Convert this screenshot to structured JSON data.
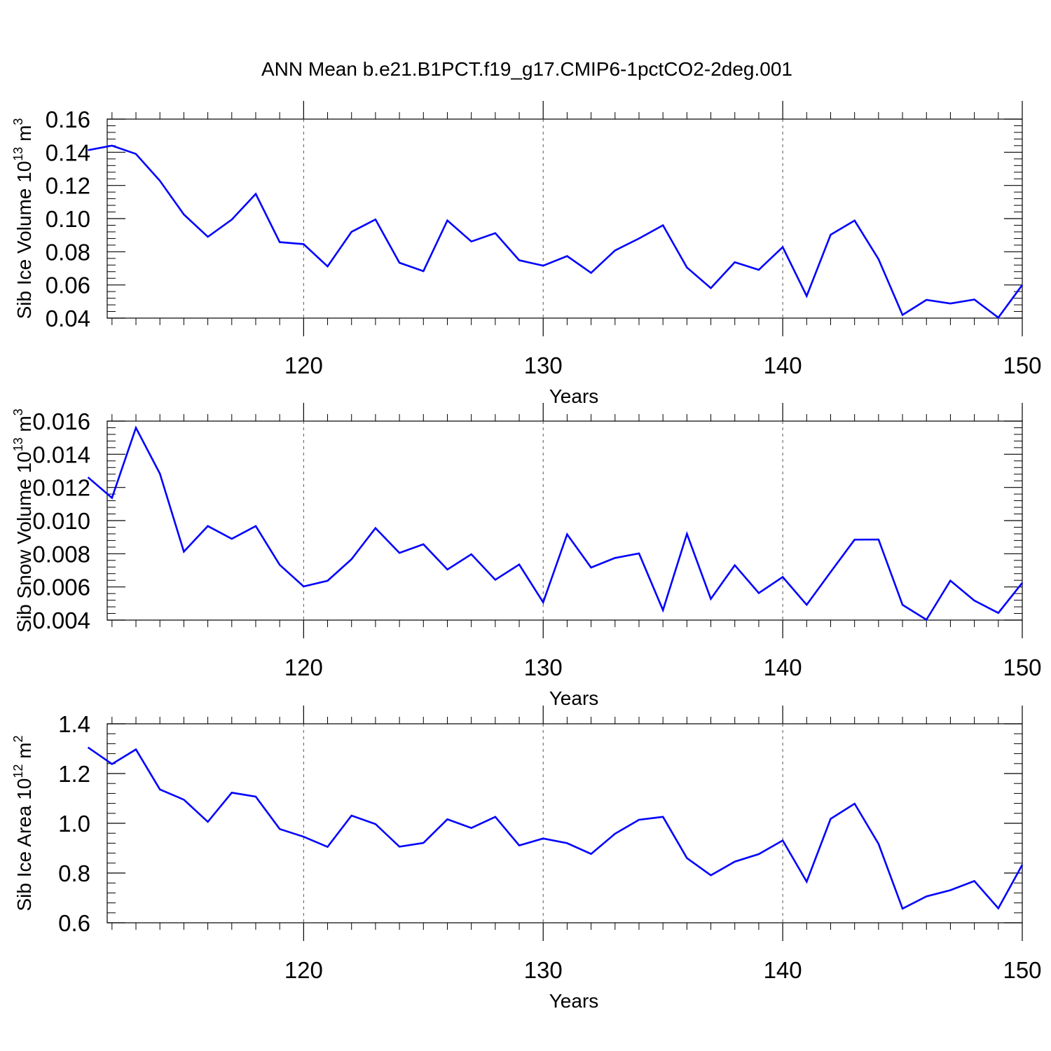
{
  "figure": {
    "title": "ANN Mean b.e21.B1PCT.f19_g17.CMIP6-1pctCO2-2deg.001"
  },
  "chart_data": [
    {
      "type": "line",
      "title": "",
      "xlabel": "Years",
      "ylabel_main": "Sib Ice Volume 10",
      "ylabel_exp": "13",
      "ylabel_unit": " m",
      "ylabel_unit_exp": "3",
      "xlim": [
        111,
        150
      ],
      "ylim": [
        0.04,
        0.16
      ],
      "xticks": [
        120,
        130,
        140,
        150
      ],
      "yticks": [
        0.04,
        0.06,
        0.08,
        0.1,
        0.12,
        0.14,
        0.16
      ],
      "ytick_labels": [
        "0.04",
        "0.06",
        "0.08",
        "0.10",
        "0.12",
        "0.14",
        "0.16"
      ],
      "grid_x": [
        120,
        130,
        140
      ],
      "line_color": "#0000ff",
      "x": [
        111,
        112,
        113,
        114,
        115,
        116,
        117,
        118,
        119,
        120,
        121,
        122,
        123,
        124,
        125,
        126,
        127,
        128,
        129,
        130,
        131,
        132,
        133,
        134,
        135,
        136,
        137,
        138,
        139,
        140,
        141,
        142,
        143,
        144,
        145,
        146,
        147,
        148,
        149,
        150
      ],
      "values": [
        0.1413,
        0.144,
        0.139,
        0.1228,
        0.1025,
        0.089,
        0.0994,
        0.1149,
        0.0858,
        0.0846,
        0.0712,
        0.092,
        0.0995,
        0.0734,
        0.0683,
        0.0989,
        0.0862,
        0.0912,
        0.0749,
        0.0716,
        0.0774,
        0.0673,
        0.0808,
        0.088,
        0.096,
        0.0705,
        0.0581,
        0.0737,
        0.0691,
        0.0828,
        0.0533,
        0.0903,
        0.0988,
        0.0755,
        0.0419,
        0.051,
        0.0488,
        0.0512,
        0.0403,
        0.06
      ]
    },
    {
      "type": "line",
      "title": "",
      "xlabel": "Years",
      "ylabel_main": "Sib Snow Volume 10",
      "ylabel_exp": "13",
      "ylabel_unit": " m",
      "ylabel_unit_exp": "3",
      "xlim": [
        111,
        150
      ],
      "ylim": [
        0.004,
        0.016
      ],
      "xticks": [
        120,
        130,
        140,
        150
      ],
      "yticks": [
        0.004,
        0.006,
        0.008,
        0.01,
        0.012,
        0.014,
        0.016
      ],
      "ytick_labels": [
        "0.004",
        "0.006",
        "0.008",
        "0.010",
        "0.012",
        "0.014",
        "0.016"
      ],
      "grid_x": [
        120,
        130,
        140
      ],
      "line_color": "#0000ff",
      "x": [
        111,
        112,
        113,
        114,
        115,
        116,
        117,
        118,
        119,
        120,
        121,
        122,
        123,
        124,
        125,
        126,
        127,
        128,
        129,
        130,
        131,
        132,
        133,
        134,
        135,
        136,
        137,
        138,
        139,
        140,
        141,
        142,
        143,
        144,
        145,
        146,
        147,
        148,
        149,
        150
      ],
      "values": [
        0.01261,
        0.01137,
        0.0156,
        0.01283,
        0.00813,
        0.00967,
        0.0089,
        0.00967,
        0.00733,
        0.00603,
        0.00637,
        0.00767,
        0.00955,
        0.00805,
        0.00857,
        0.00705,
        0.00797,
        0.00643,
        0.00735,
        0.00507,
        0.00917,
        0.00717,
        0.00775,
        0.00802,
        0.0046,
        0.0092,
        0.00528,
        0.00731,
        0.00563,
        0.0066,
        0.00492,
        0.0069,
        0.00885,
        0.00886,
        0.00492,
        0.00402,
        0.00638,
        0.00518,
        0.00443,
        0.00625
      ]
    },
    {
      "type": "line",
      "title": "",
      "xlabel": "Years",
      "ylabel_main": "Sib Ice Area 10",
      "ylabel_exp": "12",
      "ylabel_unit": " m",
      "ylabel_unit_exp": "2",
      "xlim": [
        111,
        150
      ],
      "ylim": [
        0.6,
        1.4
      ],
      "xticks": [
        120,
        130,
        140,
        150
      ],
      "yticks": [
        0.6,
        0.8,
        1.0,
        1.2,
        1.4
      ],
      "ytick_labels": [
        "0.6",
        "0.8",
        "1.0",
        "1.2",
        "1.4"
      ],
      "grid_x": [
        120,
        130,
        140
      ],
      "line_color": "#0000ff",
      "x": [
        111,
        112,
        113,
        114,
        115,
        116,
        117,
        118,
        119,
        120,
        121,
        122,
        123,
        124,
        125,
        126,
        127,
        128,
        129,
        130,
        131,
        132,
        133,
        134,
        135,
        136,
        137,
        138,
        139,
        140,
        141,
        142,
        143,
        144,
        145,
        146,
        147,
        148,
        149,
        150
      ],
      "values": [
        1.305,
        1.238,
        1.297,
        1.136,
        1.095,
        1.006,
        1.123,
        1.107,
        0.977,
        0.946,
        0.905,
        1.031,
        0.997,
        0.906,
        0.921,
        1.016,
        0.981,
        1.026,
        0.911,
        0.939,
        0.92,
        0.877,
        0.958,
        1.014,
        1.026,
        0.86,
        0.791,
        0.846,
        0.876,
        0.931,
        0.765,
        1.018,
        1.079,
        0.917,
        0.657,
        0.706,
        0.731,
        0.768,
        0.658,
        0.833
      ]
    }
  ]
}
